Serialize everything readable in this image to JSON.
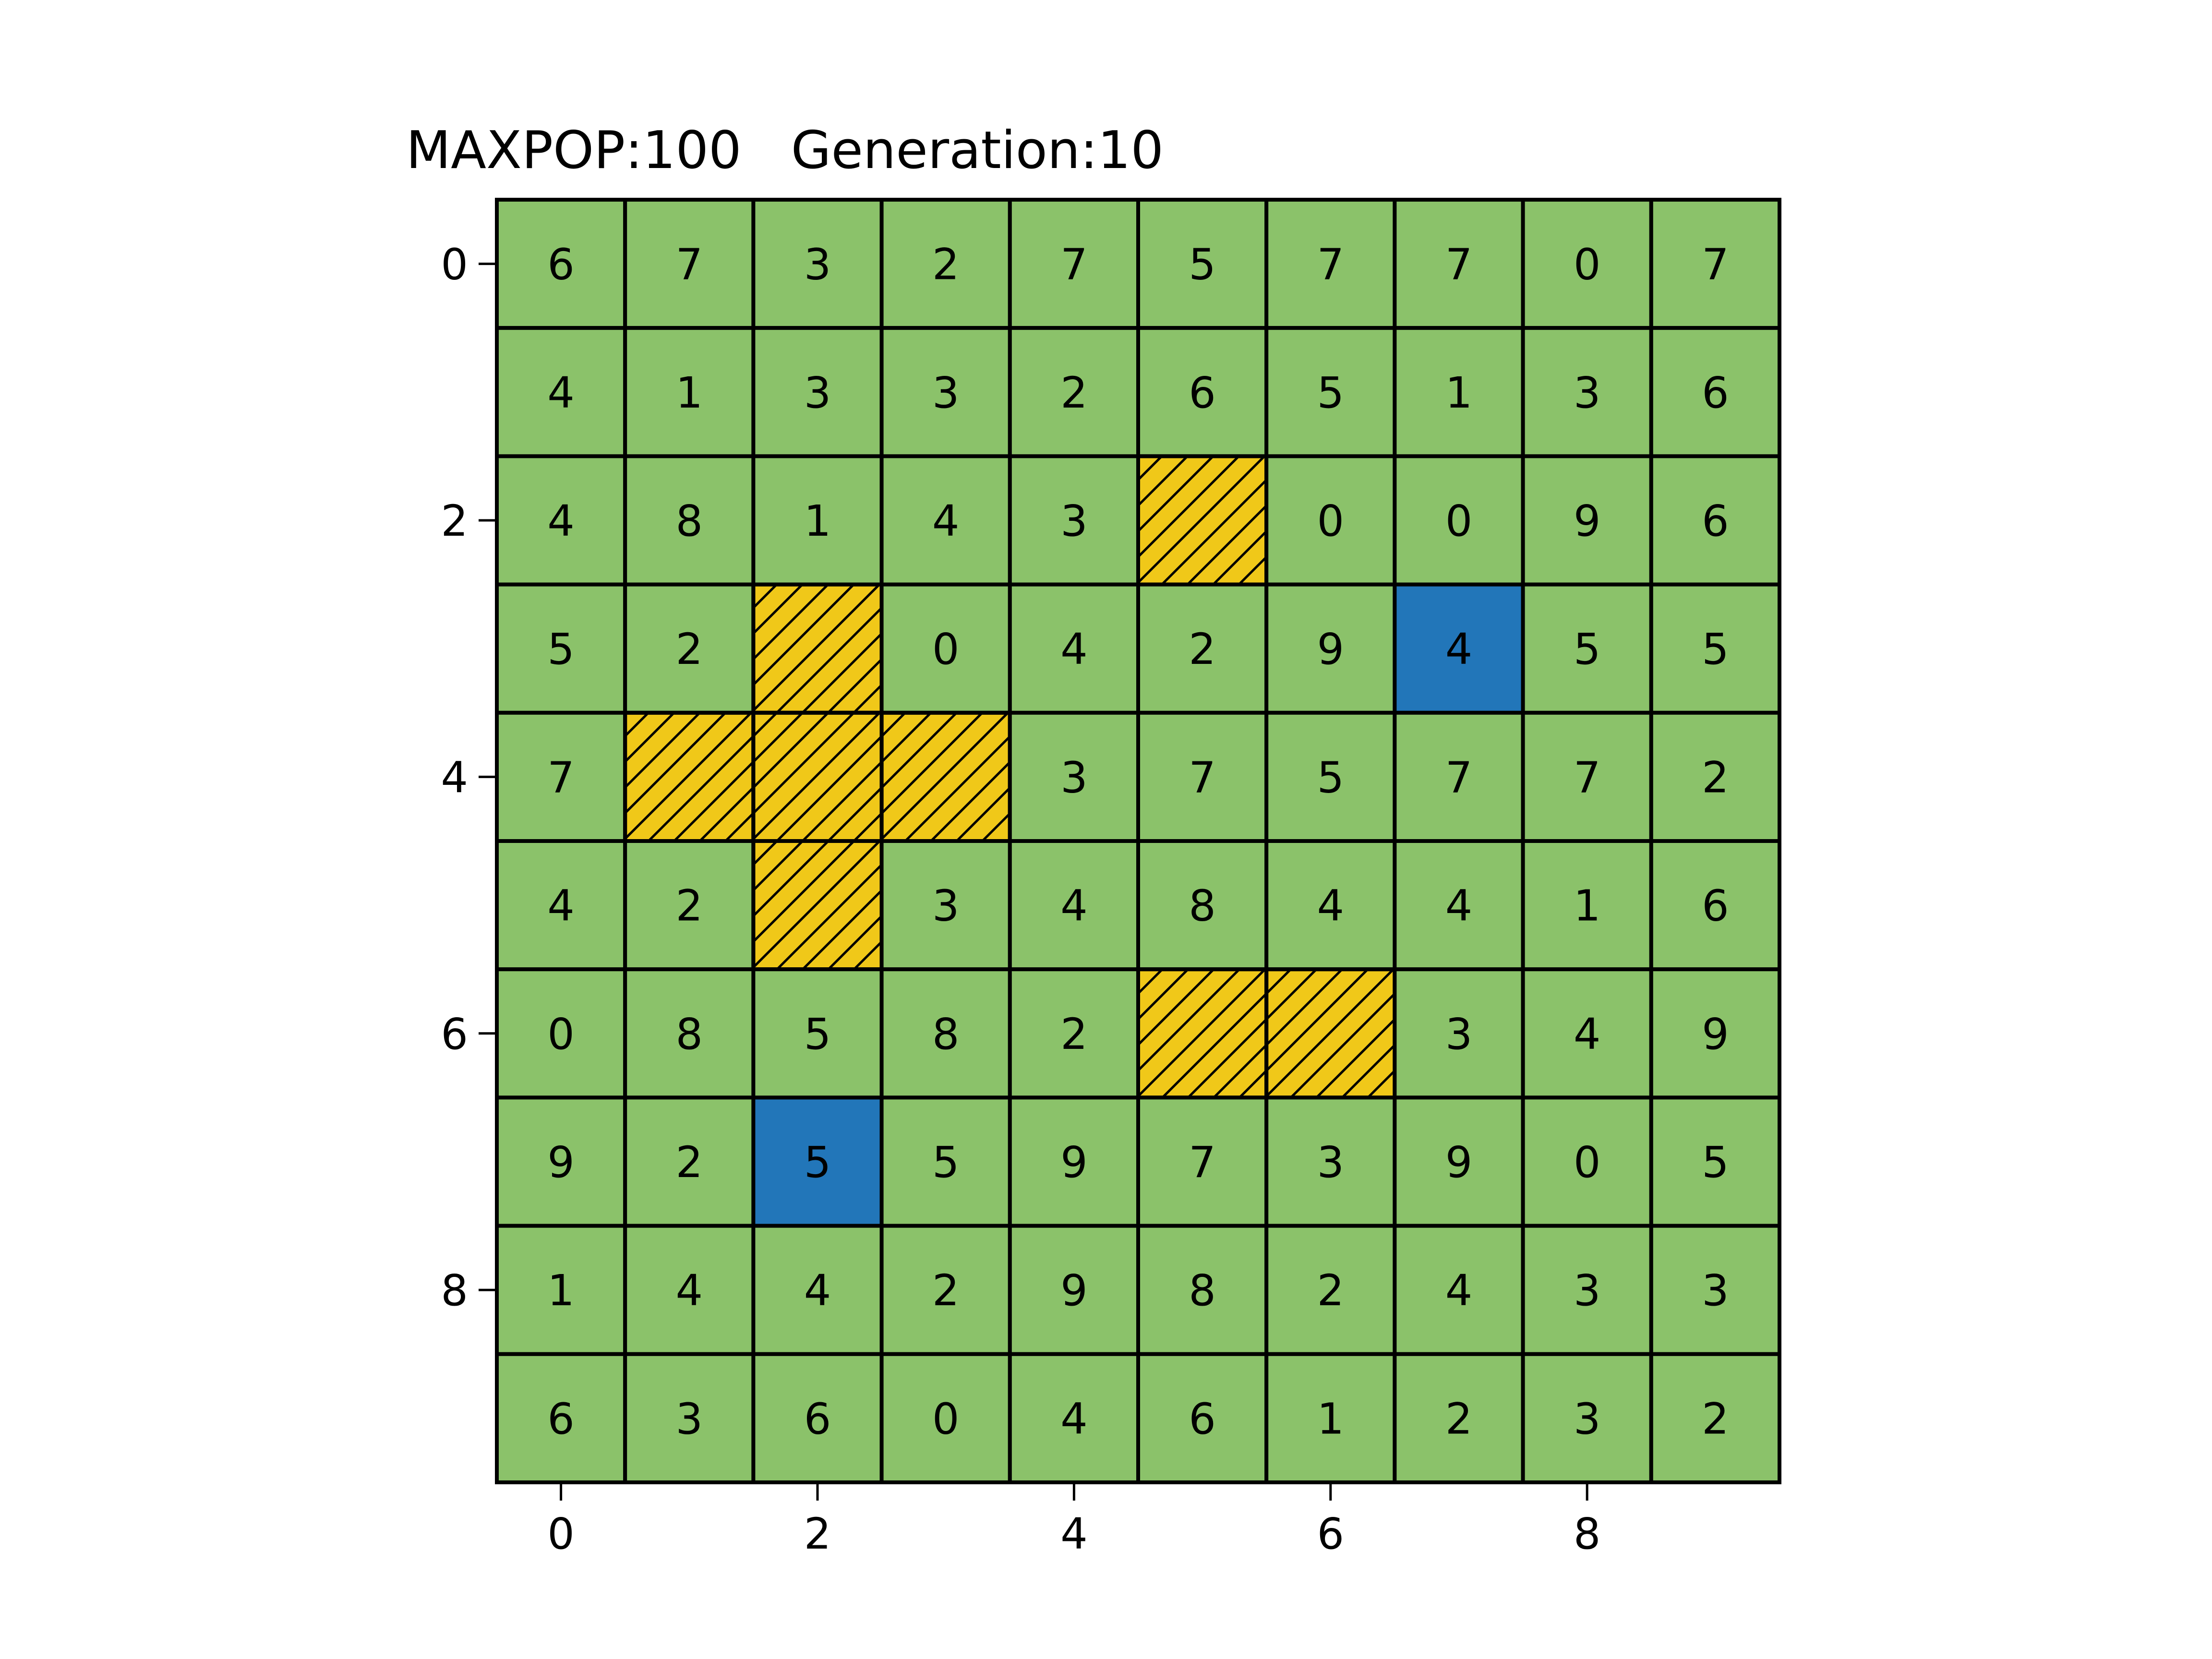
{
  "chart_data": {
    "type": "heatmap",
    "title": "MAXPOP:100   Generation:10",
    "rows": 10,
    "cols": 10,
    "values": [
      [
        6,
        7,
        3,
        2,
        7,
        5,
        7,
        7,
        0,
        7
      ],
      [
        4,
        1,
        3,
        3,
        2,
        6,
        5,
        1,
        3,
        6
      ],
      [
        4,
        8,
        1,
        4,
        3,
        null,
        0,
        0,
        9,
        6
      ],
      [
        5,
        2,
        null,
        0,
        4,
        2,
        9,
        4,
        5,
        5
      ],
      [
        7,
        null,
        null,
        null,
        3,
        7,
        5,
        7,
        7,
        2
      ],
      [
        4,
        2,
        null,
        3,
        4,
        8,
        4,
        4,
        1,
        6
      ],
      [
        0,
        8,
        5,
        8,
        2,
        null,
        null,
        3,
        4,
        9
      ],
      [
        9,
        2,
        5,
        5,
        9,
        7,
        3,
        9,
        0,
        5
      ],
      [
        1,
        4,
        4,
        2,
        9,
        8,
        2,
        4,
        3,
        3
      ],
      [
        6,
        3,
        6,
        0,
        4,
        6,
        1,
        2,
        3,
        2
      ]
    ],
    "cell_types": [
      [
        "g",
        "g",
        "g",
        "g",
        "g",
        "g",
        "g",
        "g",
        "g",
        "g"
      ],
      [
        "g",
        "g",
        "g",
        "g",
        "g",
        "g",
        "g",
        "g",
        "g",
        "g"
      ],
      [
        "g",
        "g",
        "g",
        "g",
        "g",
        "h",
        "g",
        "g",
        "g",
        "g"
      ],
      [
        "g",
        "g",
        "h",
        "g",
        "g",
        "g",
        "g",
        "b",
        "g",
        "g"
      ],
      [
        "g",
        "h",
        "h",
        "h",
        "g",
        "g",
        "g",
        "g",
        "g",
        "g"
      ],
      [
        "g",
        "g",
        "h",
        "g",
        "g",
        "g",
        "g",
        "g",
        "g",
        "g"
      ],
      [
        "g",
        "g",
        "g",
        "g",
        "g",
        "h",
        "h",
        "g",
        "g",
        "g"
      ],
      [
        "g",
        "g",
        "b",
        "g",
        "g",
        "g",
        "g",
        "g",
        "g",
        "g"
      ],
      [
        "g",
        "g",
        "g",
        "g",
        "g",
        "g",
        "g",
        "g",
        "g",
        "g"
      ],
      [
        "g",
        "g",
        "g",
        "g",
        "g",
        "g",
        "g",
        "g",
        "g",
        "g"
      ]
    ],
    "colors": {
      "g": "#8bc26a",
      "b": "#2276b9",
      "h": "#f0c819",
      "hatch": "#000000",
      "grid": "#000000"
    },
    "x_ticks": [
      0,
      2,
      4,
      6,
      8
    ],
    "y_ticks": [
      0,
      2,
      4,
      6,
      8
    ],
    "x_tick_labels": [
      "0",
      "2",
      "4",
      "6",
      "8"
    ],
    "y_tick_labels": [
      "0",
      "2",
      "4",
      "6",
      "8"
    ],
    "xlim": [
      -0.5,
      9.5
    ],
    "ylim": [
      9.5,
      -0.5
    ]
  }
}
